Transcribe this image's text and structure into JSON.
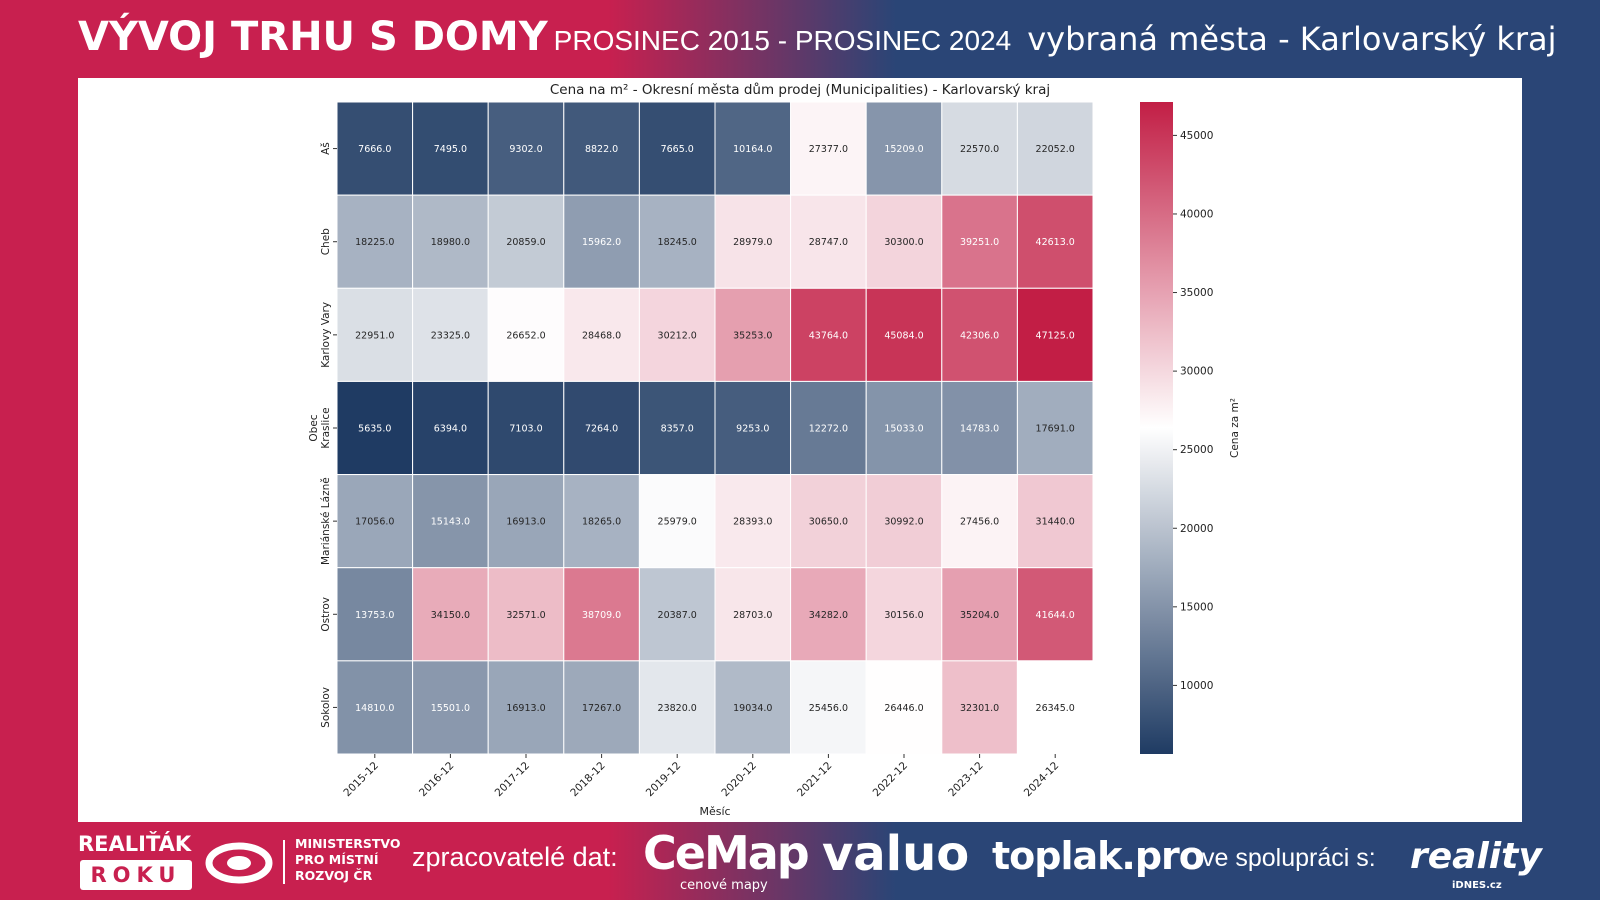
{
  "header": {
    "title": "VÝVOJ TRHU S DOMY",
    "period": "PROSINEC 2015 - PROSINEC 2024",
    "subtitle": "vybraná města - Karlovarský kraj"
  },
  "footer": {
    "award_line1": "REALIŤÁK",
    "award_line2": "ROKU",
    "ministry": [
      "MINISTERSTVO",
      "PRO MÍSTNÍ",
      "ROZVOJ ČR"
    ],
    "processors_label": "zpracovatelé dat:",
    "cemap": "CeMap",
    "cemap_sub": "cenové mapy",
    "valuo": "valuo",
    "toplak": "toplak.pro",
    "cooperation_label": "ve spolupráci s:",
    "reality": "reality",
    "reality_sub": "iDNES.cz"
  },
  "colors": {
    "low": "#1f3b63",
    "mid": "#ffffff",
    "high": "#c21e45",
    "crimson_bg": "#c8204f",
    "navy_bg": "#2a4576"
  },
  "chart_data": {
    "type": "heatmap",
    "title": "Cena na m² - Okresní města dům prodej (Municipalities) - Karlovarský kraj",
    "xlabel": "Měsíc",
    "ylabel": "",
    "colorbar_label": "Cena za m²",
    "colorbar_range": [
      5635,
      47125
    ],
    "colorbar_ticks": [
      10000,
      15000,
      20000,
      25000,
      30000,
      35000,
      40000,
      45000
    ],
    "x": [
      "2015-12",
      "2016-12",
      "2017-12",
      "2018-12",
      "2019-12",
      "2020-12",
      "2021-12",
      "2022-12",
      "2023-12",
      "2024-12"
    ],
    "y": [
      "Aš",
      "Cheb",
      "Karlovy Vary",
      "Obec Kraslice",
      "Mariánské Lázně",
      "Ostrov",
      "Sokolov"
    ],
    "values": [
      [
        7666.0,
        7495.0,
        9302.0,
        8822.0,
        7665.0,
        10164.0,
        27377.0,
        15209.0,
        22570.0,
        22052.0
      ],
      [
        18225.0,
        18980.0,
        20859.0,
        15962.0,
        18245.0,
        28979.0,
        28747.0,
        30300.0,
        39251.0,
        42613.0
      ],
      [
        22951.0,
        23325.0,
        26652.0,
        28468.0,
        30212.0,
        35253.0,
        43764.0,
        45084.0,
        42306.0,
        47125.0
      ],
      [
        5635.0,
        6394.0,
        7103.0,
        7264.0,
        8357.0,
        9253.0,
        12272.0,
        15033.0,
        14783.0,
        17691.0
      ],
      [
        17056.0,
        15143.0,
        16913.0,
        18265.0,
        25979.0,
        28393.0,
        30650.0,
        30992.0,
        27456.0,
        31440.0
      ],
      [
        13753.0,
        34150.0,
        32571.0,
        38709.0,
        20387.0,
        28703.0,
        34282.0,
        30156.0,
        35204.0,
        41644.0
      ],
      [
        14810.0,
        15501.0,
        16913.0,
        17267.0,
        23820.0,
        19034.0,
        25456.0,
        26446.0,
        32301.0,
        26345.0
      ]
    ]
  }
}
